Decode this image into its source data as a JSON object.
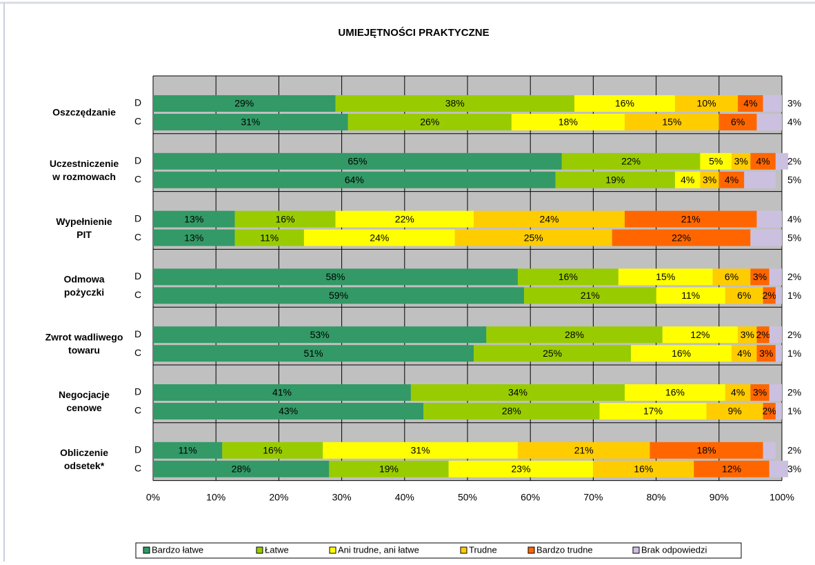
{
  "chart_data": {
    "type": "stacked_barh",
    "title": "UMIEJĘTNOŚCI PRAKTYCZNE",
    "groups": [
      [
        "Oszczędzanie"
      ],
      [
        "Uczestniczenie",
        "w rozmowach"
      ],
      [
        "Wypełnienie",
        "PIT"
      ],
      [
        "Odmowa",
        "pożyczki"
      ],
      [
        "Zwrot wadliwego",
        "towaru"
      ],
      [
        "Negocjacje",
        "cenowe"
      ],
      [
        "Obliczenie",
        "odsetek*"
      ]
    ],
    "categories": [
      "D",
      "C",
      "D",
      "C",
      "D",
      "C",
      "D",
      "C",
      "D",
      "C",
      "D",
      "C",
      "D",
      "C"
    ],
    "series": [
      {
        "name": "Bardzo łatwe",
        "color": "#339966",
        "values": [
          29,
          31,
          65,
          64,
          13,
          13,
          58,
          59,
          53,
          51,
          41,
          43,
          11,
          28
        ],
        "value_labels": [
          "29%",
          "31%",
          "65%",
          "64%",
          "13%",
          "13%",
          "58%",
          "59%",
          "53%",
          "51%",
          "41%",
          "43%",
          "11%",
          "28%"
        ]
      },
      {
        "name": "Łatwe",
        "color": "#99cc00",
        "values": [
          38,
          26,
          22,
          19,
          16,
          11,
          16,
          21,
          28,
          25,
          34,
          28,
          16,
          19
        ],
        "value_labels": [
          "38%",
          "26%",
          "22%",
          "19%",
          "16%",
          "11%",
          "16%",
          "21%",
          "28%",
          "25%",
          "34%",
          "28%",
          "16%",
          "19%"
        ]
      },
      {
        "name": "Ani trudne, ani łatwe",
        "color": "#ffff00",
        "values": [
          16,
          18,
          5,
          4,
          22,
          24,
          15,
          11,
          12,
          16,
          16,
          17,
          31,
          23
        ],
        "value_labels": [
          "16%",
          "18%",
          "5%",
          "4%",
          "22%",
          "24%",
          "15%",
          "11%",
          "12%",
          "16%",
          "16%",
          "17%",
          "31%",
          "23%"
        ]
      },
      {
        "name": "Trudne",
        "color": "#ffcc00",
        "values": [
          10,
          15,
          3,
          3,
          24,
          25,
          6,
          6,
          3,
          4,
          4,
          9,
          21,
          16
        ],
        "value_labels": [
          "10%",
          "15%",
          "3%",
          "3%",
          "24%",
          "25%",
          "6%",
          "6%",
          "3%",
          "4%",
          "4%",
          "9%",
          "21%",
          "16%"
        ]
      },
      {
        "name": "Bardzo trudne",
        "color": "#ff6600",
        "values": [
          4,
          6,
          4,
          4,
          21,
          22,
          3,
          2,
          2,
          3,
          3,
          2,
          18,
          12
        ],
        "value_labels": [
          "4%",
          "6%",
          "4%",
          "4%",
          "21%",
          "22%",
          "3%",
          "2%",
          "2%",
          "3%",
          "3%",
          "2%",
          "18%",
          "12%"
        ]
      },
      {
        "name": "Brak odpowiedzi",
        "color": "#ccc0e0",
        "values": [
          3,
          4,
          2,
          5,
          4,
          5,
          2,
          1,
          2,
          1,
          2,
          1,
          2,
          3
        ],
        "value_labels": [
          "3%",
          "4%",
          "2%",
          "5%",
          "4%",
          "5%",
          "2%",
          "1%",
          "2%",
          "1%",
          "2%",
          "1%",
          "2%",
          "3%"
        ]
      }
    ],
    "xlim": [
      0,
      100
    ],
    "xticks": [
      {
        "value": 0,
        "label": "0%"
      },
      {
        "value": 10,
        "label": "10%"
      },
      {
        "value": 20,
        "label": "20%"
      },
      {
        "value": 30,
        "label": "30%"
      },
      {
        "value": 40,
        "label": "40%"
      },
      {
        "value": 50,
        "label": "50%"
      },
      {
        "value": 60,
        "label": "60%"
      },
      {
        "value": 70,
        "label": "70%"
      },
      {
        "value": 80,
        "label": "80%"
      },
      {
        "value": 90,
        "label": "90%"
      },
      {
        "value": 100,
        "label": "100%"
      }
    ],
    "grid": true,
    "legend": "bottom"
  }
}
